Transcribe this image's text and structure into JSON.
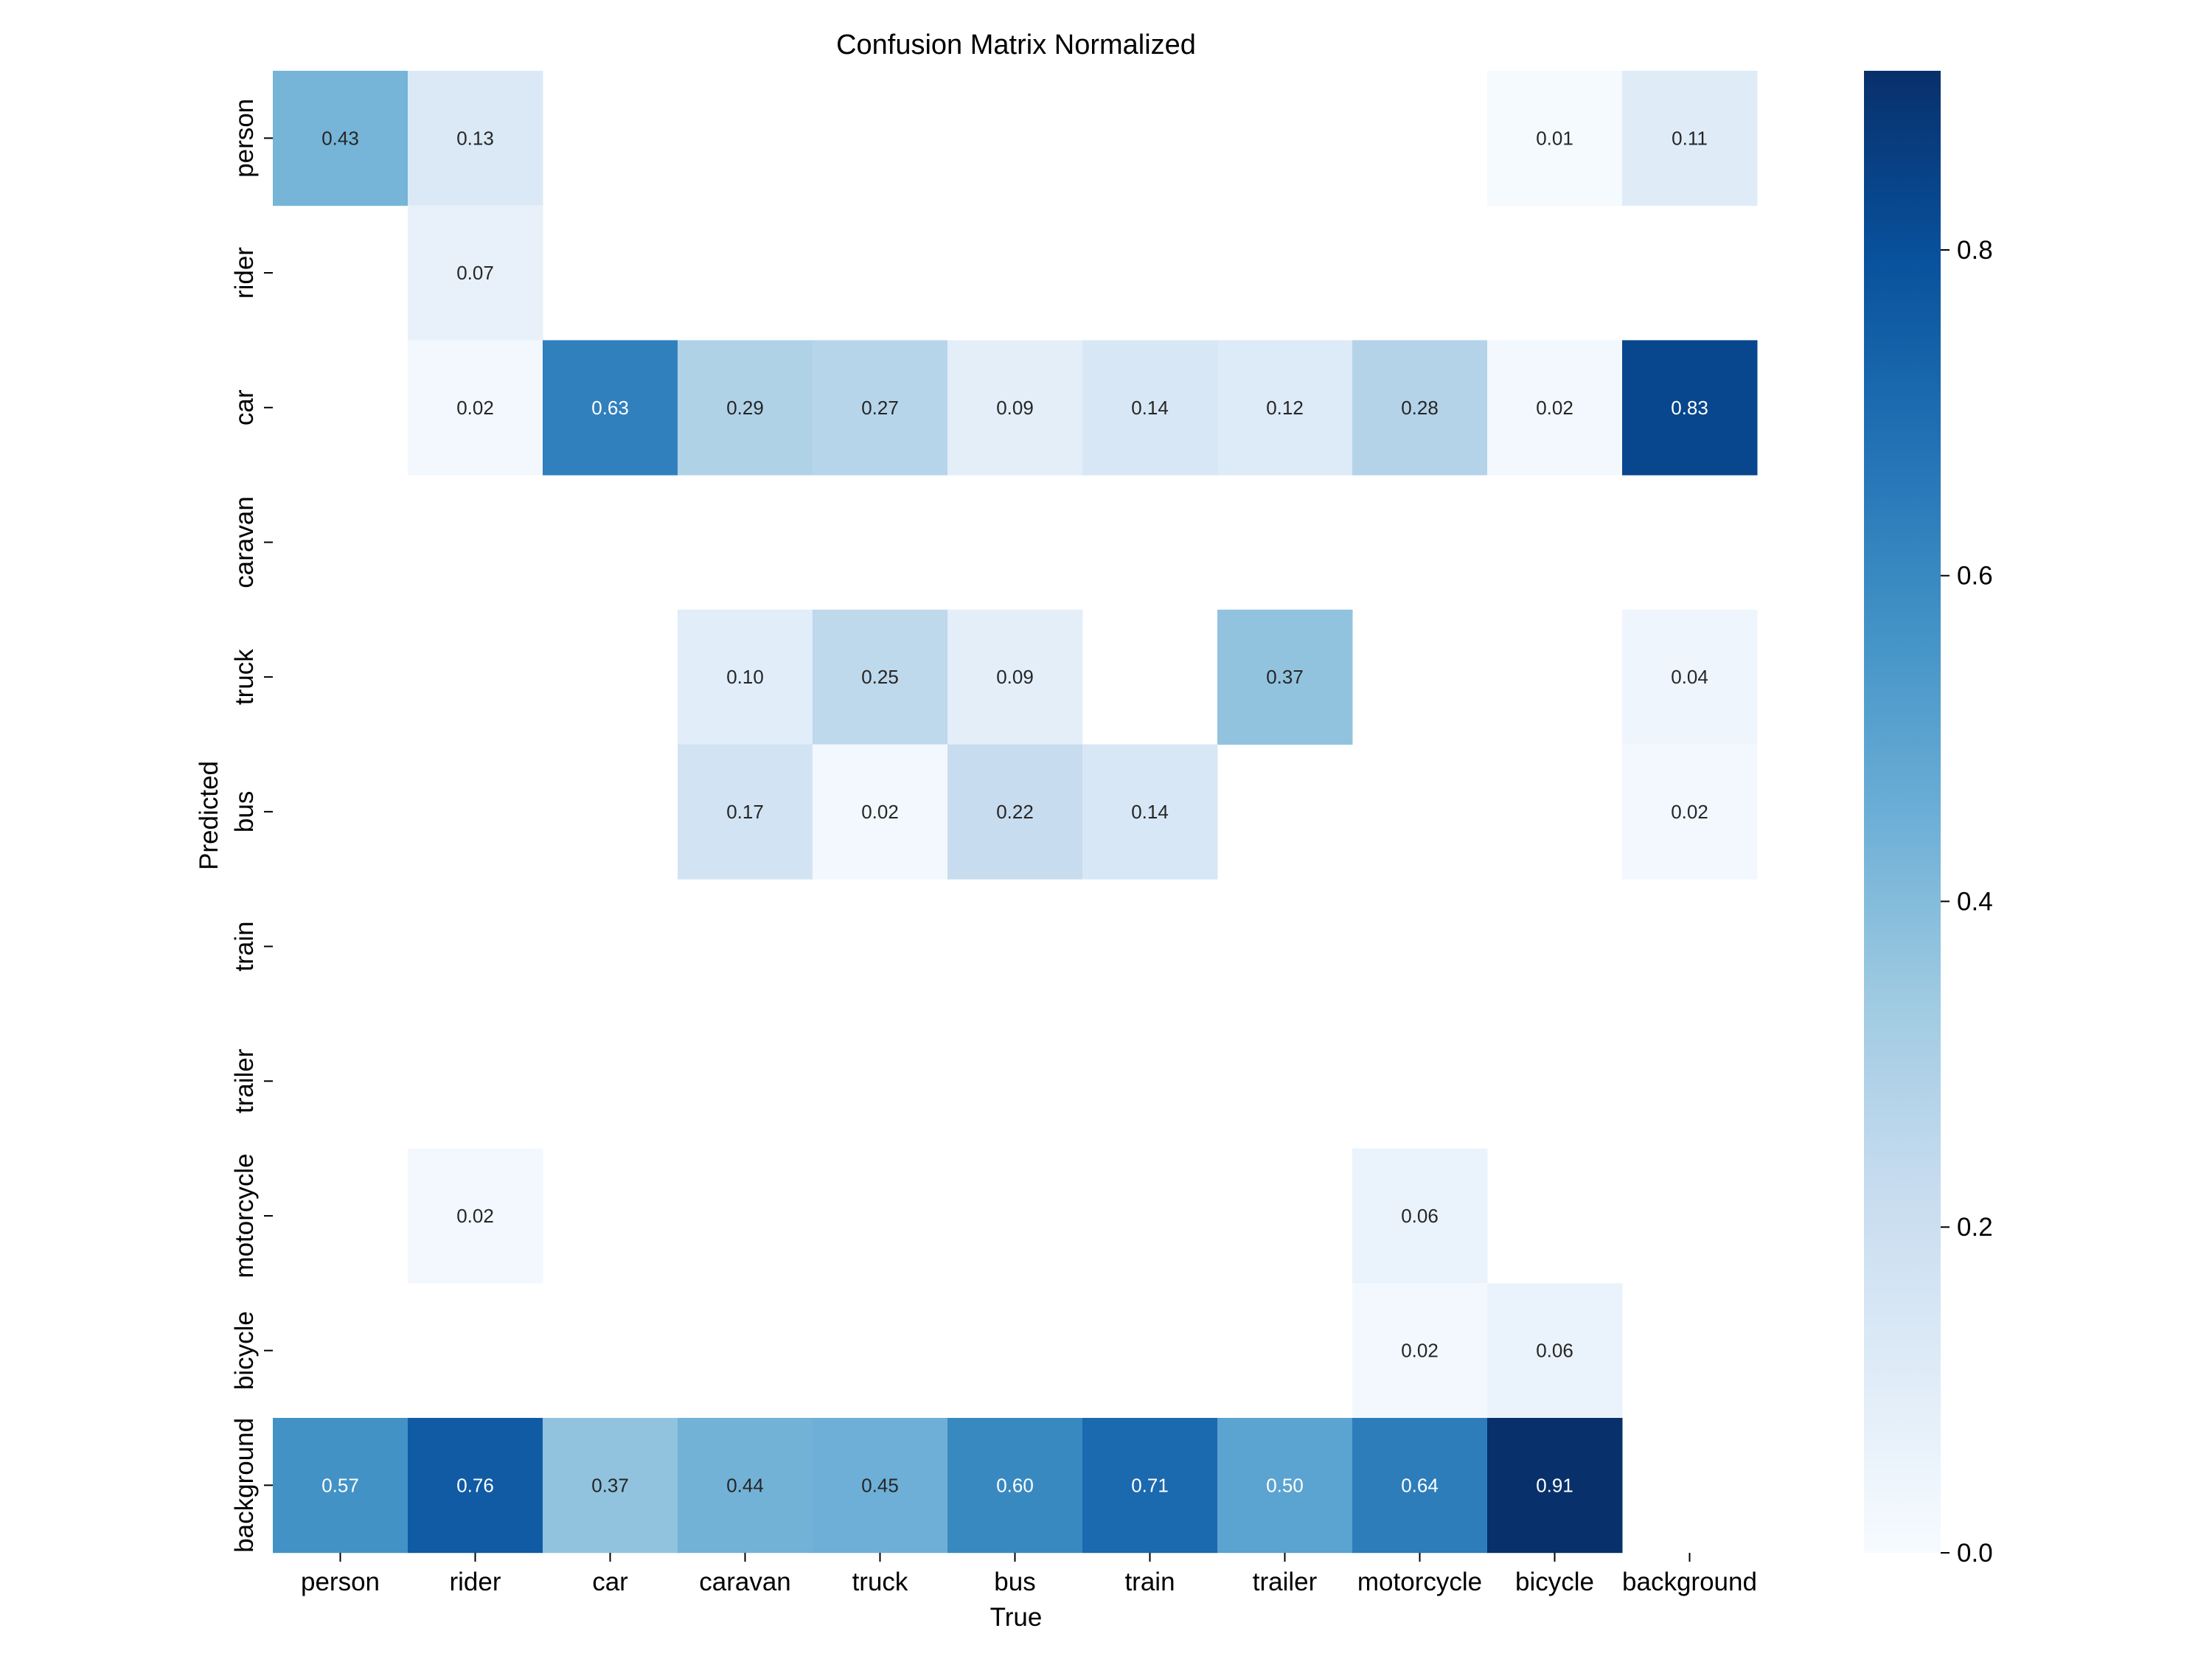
{
  "chart_data": {
    "type": "heatmap",
    "title": "Confusion Matrix Normalized",
    "xlabel": "True",
    "ylabel": "Predicted",
    "x_categories": [
      "person",
      "rider",
      "car",
      "caravan",
      "truck",
      "bus",
      "train",
      "trailer",
      "motorcycle",
      "bicycle",
      "background"
    ],
    "y_categories": [
      "person",
      "rider",
      "car",
      "caravan",
      "truck",
      "bus",
      "train",
      "trailer",
      "motorcycle",
      "bicycle",
      "background"
    ],
    "values": [
      [
        0.43,
        0.13,
        null,
        null,
        null,
        null,
        null,
        null,
        null,
        0.01,
        0.11
      ],
      [
        null,
        0.07,
        null,
        null,
        null,
        null,
        null,
        null,
        null,
        null,
        null
      ],
      [
        null,
        0.02,
        0.63,
        0.29,
        0.27,
        0.09,
        0.14,
        0.12,
        0.28,
        0.02,
        0.83
      ],
      [
        null,
        null,
        null,
        null,
        null,
        null,
        null,
        null,
        null,
        null,
        null
      ],
      [
        null,
        null,
        null,
        0.1,
        0.25,
        0.09,
        null,
        0.37,
        null,
        null,
        0.04
      ],
      [
        null,
        null,
        null,
        0.17,
        0.02,
        0.22,
        0.14,
        null,
        null,
        null,
        0.02
      ],
      [
        null,
        null,
        null,
        null,
        null,
        null,
        null,
        null,
        null,
        null,
        null
      ],
      [
        null,
        null,
        null,
        null,
        null,
        null,
        null,
        null,
        null,
        null,
        null
      ],
      [
        null,
        0.02,
        null,
        null,
        null,
        null,
        null,
        null,
        0.06,
        null,
        null
      ],
      [
        null,
        null,
        null,
        null,
        null,
        null,
        null,
        null,
        0.02,
        0.06,
        null
      ],
      [
        0.57,
        0.76,
        0.37,
        0.44,
        0.45,
        0.6,
        0.71,
        0.5,
        0.64,
        0.91,
        null
      ]
    ],
    "value_format": "0.00",
    "colormap": "Blues",
    "color_range": [
      0,
      0.91
    ],
    "colorbar_ticks": [
      0.0,
      0.2,
      0.4,
      0.6,
      0.8
    ],
    "colorbar_tick_labels": [
      "0.0",
      "0.2",
      "0.4",
      "0.6",
      "0.8"
    ]
  }
}
